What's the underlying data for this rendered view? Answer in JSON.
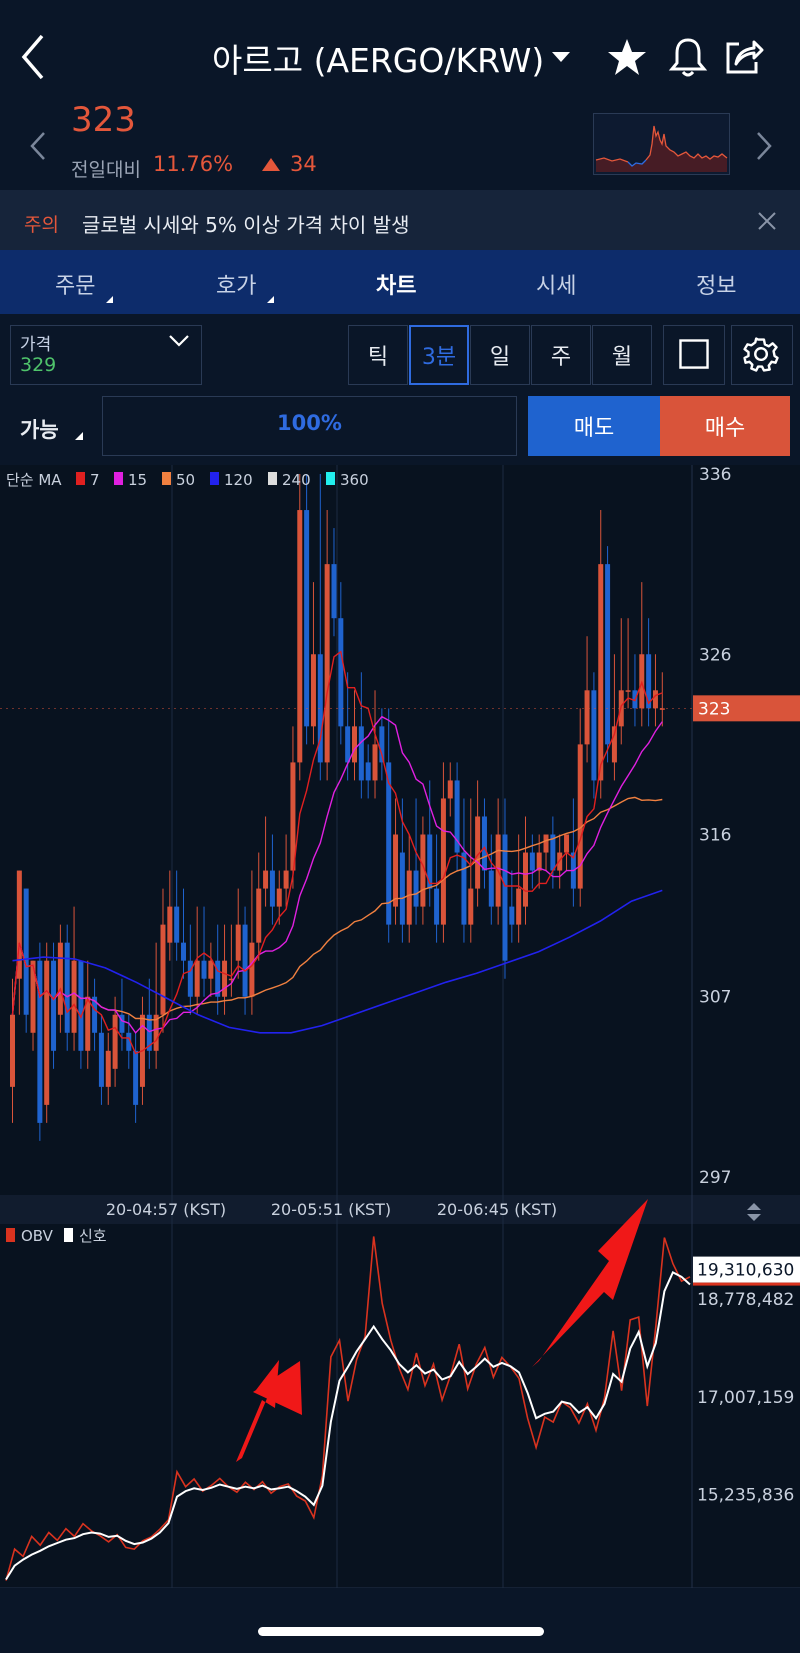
{
  "header": {
    "title": "아르고 (AERGO/KRW)"
  },
  "ticker": {
    "price": "323",
    "change_label": "전일대비",
    "change_pct": "11.76%",
    "change_amt": "34"
  },
  "notice": {
    "tag": "주의",
    "text": "글로벌 시세와 5% 이상 가격 차이 발생"
  },
  "tabs": [
    {
      "label": "주문"
    },
    {
      "label": "호가"
    },
    {
      "label": "차트"
    },
    {
      "label": "시세"
    },
    {
      "label": "정보"
    }
  ],
  "controls": {
    "price_type_label": "가격",
    "price_type_value": "329",
    "intervals": [
      {
        "label": "틱"
      },
      {
        "label": "3분"
      },
      {
        "label": "일"
      },
      {
        "label": "주"
      },
      {
        "label": "월"
      }
    ],
    "active_interval": "3분",
    "avail_label": "가능",
    "pct": "100%",
    "sell": "매도",
    "buy": "매수"
  },
  "colors": {
    "up": "#d9543a",
    "down": "#1f63cf",
    "ma7": "#e02020",
    "ma15": "#e020e0",
    "ma50": "#f08040",
    "ma120": "#2222ee",
    "ma240": "#dddddd",
    "ma360": "#22eeee"
  },
  "chart_data": [
    {
      "type": "candlestick",
      "legend_title": "단순 MA",
      "legend": [
        {
          "label": "7",
          "color": "#e02020"
        },
        {
          "label": "15",
          "color": "#e020e0"
        },
        {
          "label": "50",
          "color": "#f08040"
        },
        {
          "label": "120",
          "color": "#2222ee"
        },
        {
          "label": "240",
          "color": "#dddddd"
        },
        {
          "label": "360",
          "color": "#22eeee"
        }
      ],
      "y_ticks": [
        "336",
        "326",
        "316",
        "307",
        "297"
      ],
      "current_price": "323",
      "x_ticks": [
        "20-04:57 (KST)",
        "20-05:51 (KST)",
        "20-06:45 (KST)"
      ],
      "ylim": [
        296,
        336.5
      ],
      "candles": [
        [
          302,
          306,
          300,
          308
        ],
        [
          308,
          314,
          306,
          314
        ],
        [
          313,
          306,
          305,
          313
        ],
        [
          305,
          309,
          304,
          309
        ],
        [
          309,
          300,
          299,
          310
        ],
        [
          301,
          309,
          300,
          310
        ],
        [
          309,
          304,
          303,
          310
        ],
        [
          306,
          310,
          305,
          311
        ],
        [
          310,
          305,
          304,
          311
        ],
        [
          305,
          309,
          304,
          312
        ],
        [
          309,
          304,
          303,
          309
        ],
        [
          304,
          307,
          303,
          309
        ],
        [
          307,
          305,
          304,
          308
        ],
        [
          305,
          302,
          301,
          306
        ],
        [
          302,
          304,
          301,
          305
        ],
        [
          303,
          306,
          302,
          307
        ],
        [
          306,
          305,
          304,
          308
        ],
        [
          305,
          304,
          303,
          306
        ],
        [
          304,
          301,
          300,
          305
        ],
        [
          302,
          306,
          301,
          307
        ],
        [
          306,
          304,
          303,
          308
        ],
        [
          304,
          306,
          303,
          310
        ],
        [
          306,
          311,
          305,
          313
        ],
        [
          310,
          312,
          309,
          314
        ],
        [
          312,
          310,
          309,
          314
        ],
        [
          310,
          309,
          308,
          313
        ],
        [
          309,
          307,
          306,
          311
        ],
        [
          307,
          309,
          306,
          312
        ],
        [
          309,
          308,
          307,
          312
        ],
        [
          308,
          309,
          307,
          310
        ],
        [
          309,
          307,
          306,
          311
        ],
        [
          307,
          309,
          306,
          311
        ],
        [
          308,
          308,
          307,
          311
        ],
        [
          309,
          311,
          308,
          313
        ],
        [
          311,
          307,
          306,
          312
        ],
        [
          307,
          310,
          306,
          314
        ],
        [
          310,
          313,
          309,
          315
        ],
        [
          313,
          314,
          312,
          317
        ],
        [
          314,
          312,
          311,
          316
        ],
        [
          312,
          313,
          311,
          314
        ],
        [
          313,
          314,
          312,
          316
        ],
        [
          314,
          320,
          313,
          322
        ],
        [
          320,
          334,
          319,
          336
        ],
        [
          334,
          322,
          321,
          336
        ],
        [
          322,
          326,
          321,
          330
        ],
        [
          326,
          320,
          319,
          336
        ],
        [
          320,
          331,
          319,
          334
        ],
        [
          331,
          328,
          327,
          333
        ],
        [
          328,
          322,
          321,
          330
        ],
        [
          322,
          320,
          319,
          325
        ],
        [
          320,
          322,
          319,
          324
        ],
        [
          322,
          319,
          318,
          325
        ],
        [
          320,
          319,
          318,
          321
        ],
        [
          319,
          321,
          318,
          324
        ],
        [
          322,
          320,
          319,
          323
        ],
        [
          320,
          311,
          310,
          323
        ],
        [
          312,
          316,
          311,
          318
        ],
        [
          315,
          311,
          310,
          318
        ],
        [
          311,
          314,
          310,
          316
        ],
        [
          314,
          312,
          311,
          318
        ],
        [
          312,
          316,
          311,
          317
        ],
        [
          316,
          313,
          312,
          319
        ],
        [
          313,
          311,
          310,
          316
        ],
        [
          311,
          318,
          310,
          320
        ],
        [
          318,
          319,
          317,
          320
        ],
        [
          319,
          315,
          314,
          320
        ],
        [
          315,
          311,
          310,
          318
        ],
        [
          311,
          313,
          310,
          318
        ],
        [
          313,
          317,
          312,
          319
        ],
        [
          317,
          314,
          313,
          318
        ],
        [
          314,
          312,
          311,
          316
        ],
        [
          312,
          316,
          311,
          318
        ],
        [
          316,
          309,
          308,
          318
        ],
        [
          312,
          311,
          310,
          314
        ],
        [
          311,
          313,
          310,
          316
        ],
        [
          312,
          315,
          311,
          317
        ],
        [
          315,
          314,
          313,
          316
        ],
        [
          314,
          315,
          313,
          316
        ],
        [
          315,
          316,
          314,
          316
        ],
        [
          316,
          314,
          313,
          317
        ],
        [
          314,
          315,
          313,
          316
        ],
        [
          315,
          316,
          314,
          316
        ],
        [
          315,
          313,
          312,
          318
        ],
        [
          313,
          321,
          312,
          323
        ],
        [
          321,
          324,
          320,
          327
        ],
        [
          324,
          319,
          318,
          325
        ],
        [
          319,
          331,
          318,
          334
        ],
        [
          331,
          321,
          320,
          332
        ],
        [
          320,
          322,
          319,
          326
        ],
        [
          322,
          324,
          321,
          328
        ],
        [
          324,
          324,
          323,
          328
        ],
        [
          324,
          323,
          322,
          326
        ],
        [
          323,
          326,
          322,
          330
        ],
        [
          326,
          323,
          322,
          328
        ],
        [
          323,
          324,
          322,
          326
        ],
        [
          323,
          323,
          322,
          325
        ]
      ]
    },
    {
      "type": "line",
      "legend": [
        {
          "label": "OBV",
          "color": "#d9331f"
        },
        {
          "label": "신호",
          "color": "#ffffff"
        }
      ],
      "y_ticks": [
        "19,310,630",
        "18,778,482",
        "17,007,159",
        "15,235,836"
      ],
      "ylim": [
        13600000,
        20100000
      ],
      "obv": [
        13.68,
        14.25,
        14.12,
        14.48,
        14.32,
        14.55,
        14.41,
        14.62,
        14.48,
        14.71,
        14.58,
        14.49,
        14.38,
        14.51,
        14.28,
        14.25,
        14.4,
        14.47,
        14.61,
        14.78,
        15.65,
        15.38,
        15.52,
        15.3,
        15.4,
        15.53,
        15.38,
        15.28,
        15.46,
        15.33,
        15.47,
        15.26,
        15.38,
        15.43,
        15.21,
        15.12,
        14.82,
        15.58,
        17.73,
        18.03,
        16.93,
        17.68,
        18.1,
        19.91,
        18.7,
        18.03,
        17.52,
        17.14,
        17.8,
        17.21,
        17.6,
        16.95,
        17.4,
        17.96,
        17.15,
        17.6,
        17.9,
        17.36,
        17.72,
        17.55,
        17.34,
        16.62,
        16.09,
        16.64,
        16.55,
        16.92,
        16.81,
        16.53,
        16.88,
        16.4,
        16.99,
        18.2,
        17.12,
        18.4,
        18.45,
        16.84,
        18.28,
        19.89,
        19.42,
        19.1,
        19.18
      ],
      "signal": [
        13.7,
        13.95,
        14.06,
        14.15,
        14.22,
        14.3,
        14.36,
        14.42,
        14.45,
        14.52,
        14.55,
        14.53,
        14.47,
        14.49,
        14.4,
        14.34,
        14.37,
        14.44,
        14.55,
        14.72,
        15.2,
        15.3,
        15.35,
        15.32,
        15.36,
        15.42,
        15.38,
        15.34,
        15.38,
        15.35,
        15.4,
        15.33,
        15.35,
        15.38,
        15.3,
        15.2,
        15.05,
        15.4,
        16.56,
        17.3,
        17.55,
        17.83,
        18.05,
        18.28,
        18.05,
        17.85,
        17.6,
        17.45,
        17.58,
        17.43,
        17.5,
        17.32,
        17.38,
        17.64,
        17.42,
        17.55,
        17.7,
        17.55,
        17.62,
        17.56,
        17.45,
        17.08,
        16.62,
        16.7,
        16.74,
        16.92,
        16.88,
        16.72,
        16.82,
        16.62,
        16.88,
        17.42,
        17.28,
        17.88,
        18.18,
        17.56,
        17.98,
        18.92,
        19.26,
        19.18,
        19.04
      ]
    }
  ]
}
